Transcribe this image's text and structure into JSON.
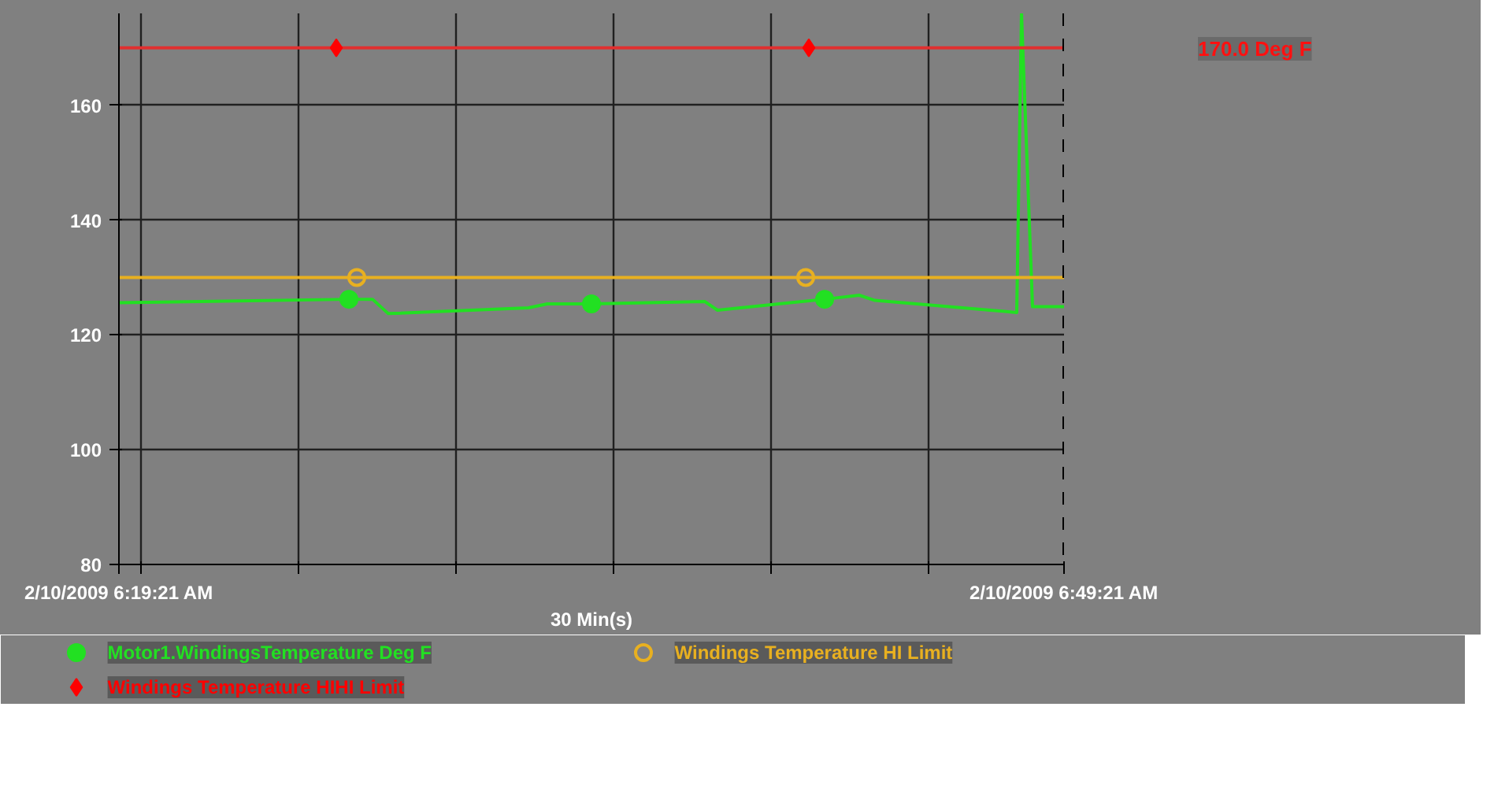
{
  "chart_data": {
    "type": "line",
    "xlabel": "30 Min(s)",
    "xlim": [
      "2009-02-10T06:19:21",
      "2009-02-10T06:49:21"
    ],
    "ylim": [
      80,
      176
    ],
    "xticks": [
      {
        "value": "2009-02-10T06:19:21",
        "label": "2/10/2009 6:19:21 AM"
      },
      {
        "value": "2009-02-10T06:20:03",
        "label": null
      },
      {
        "value": "2009-02-10T06:25:03",
        "label": null
      },
      {
        "value": "2009-02-10T06:30:03",
        "label": null
      },
      {
        "value": "2009-02-10T06:35:03",
        "label": null
      },
      {
        "value": "2009-02-10T06:40:03",
        "label": null
      },
      {
        "value": "2009-02-10T06:45:03",
        "label": null
      },
      {
        "value": "2009-02-10T06:49:21",
        "label": "2/10/2009 6:49:21 AM"
      }
    ],
    "yticks": [
      80,
      100,
      120,
      140,
      160
    ],
    "grid": true,
    "legend": "bottom",
    "series": [
      {
        "color": "#22e022",
        "x": [
          "2009-02-10T06:19:21",
          "2009-02-10T06:26:39",
          "2009-02-10T06:27:24",
          "2009-02-10T06:27:54",
          "2009-02-10T06:32:21",
          "2009-02-10T06:32:57",
          "2009-02-10T06:34:21",
          "2009-02-10T06:37:57",
          "2009-02-10T06:38:21",
          "2009-02-10T06:41:45",
          "2009-02-10T06:42:51",
          "2009-02-10T06:43:21",
          "2009-02-10T06:47:51",
          "2009-02-10T06:48:00",
          "2009-02-10T06:48:21",
          "2009-02-10T06:49:21"
        ],
        "values": [
          125.6,
          126.2,
          126.2,
          123.7,
          124.7,
          125.4,
          125.4,
          125.8,
          124.3,
          126.2,
          126.9,
          126.0,
          123.9,
          176,
          124.9,
          124.9
        ]
      },
      {
        "type": "scatter",
        "name": "Motor1.WindingsTemperature Deg F",
        "color": "#22e022",
        "marker": "circle",
        "x": [
          "2009-02-10T06:26:39",
          "2009-02-10T06:34:21",
          "2009-02-10T06:41:45"
        ],
        "values": [
          126.2,
          125.4,
          126.2
        ]
      },
      {
        "color": "#e8b020",
        "x": [
          "2009-02-10T06:19:21",
          "2009-02-10T06:49:21"
        ],
        "values": [
          130,
          130
        ]
      },
      {
        "type": "scatter",
        "name": "Windings Temperature HI Limit",
        "color": "#e8b020",
        "marker": "circle_open",
        "x": [
          "2009-02-10T06:26:54",
          "2009-02-10T06:41:09"
        ],
        "values": [
          130,
          130
        ]
      },
      {
        "color": "#e03030",
        "x": [
          "2009-02-10T06:19:21",
          "2009-02-10T06:49:21"
        ],
        "values": [
          170,
          170
        ]
      },
      {
        "type": "scatter",
        "name": "Windings Temperature HIHI Limit",
        "color": "#ff0000",
        "marker": "diamond",
        "x": [
          "2009-02-10T06:26:15",
          "2009-02-10T06:41:15"
        ],
        "values": [
          170,
          170
        ]
      }
    ],
    "annotations": [
      "170.0 Deg F"
    ]
  }
}
